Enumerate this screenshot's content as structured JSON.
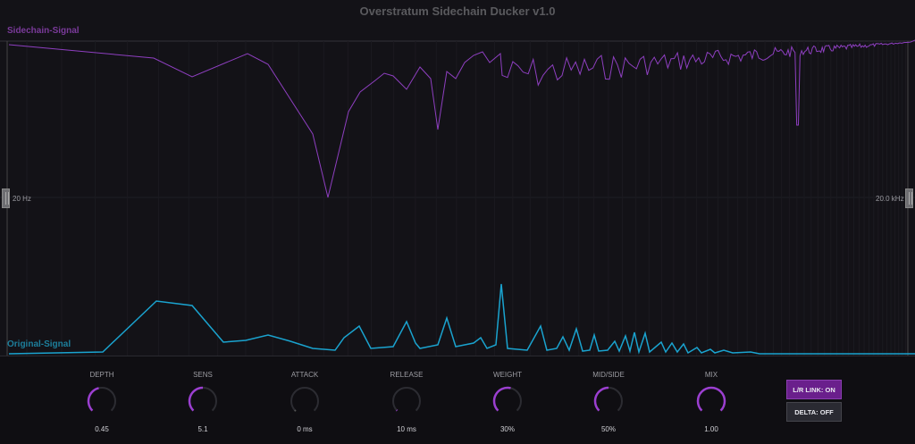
{
  "title": "Overstratum Sidechain Ducker v1.0",
  "sidechain_label": "Sidechain-Signal",
  "original_label": "Original-Signal",
  "freq_min": "20 Hz",
  "freq_max": "20.0 kHz",
  "colors": {
    "sidechain": "#8e3fc0",
    "original": "#1aa3cf",
    "accent": "#9b3fd0"
  },
  "knobs": [
    {
      "label": "DEPTH",
      "value": "0.45",
      "fraction": 0.45
    },
    {
      "label": "SENS",
      "value": "5.1",
      "fraction": 0.5
    },
    {
      "label": "ATTACK",
      "value": "0 ms",
      "fraction": 0
    },
    {
      "label": "RELEASE",
      "value": "10 ms",
      "fraction": 0.01
    },
    {
      "label": "WEIGHT",
      "value": "30%",
      "fraction": 0.55
    },
    {
      "label": "MID/SIDE",
      "value": "50%",
      "fraction": 0.5
    },
    {
      "label": "MIX",
      "value": "1.00",
      "fraction": 1.0
    }
  ],
  "buttons": {
    "lr_link": "L/R LINK: ON",
    "delta": "DELTA: OFF"
  }
}
